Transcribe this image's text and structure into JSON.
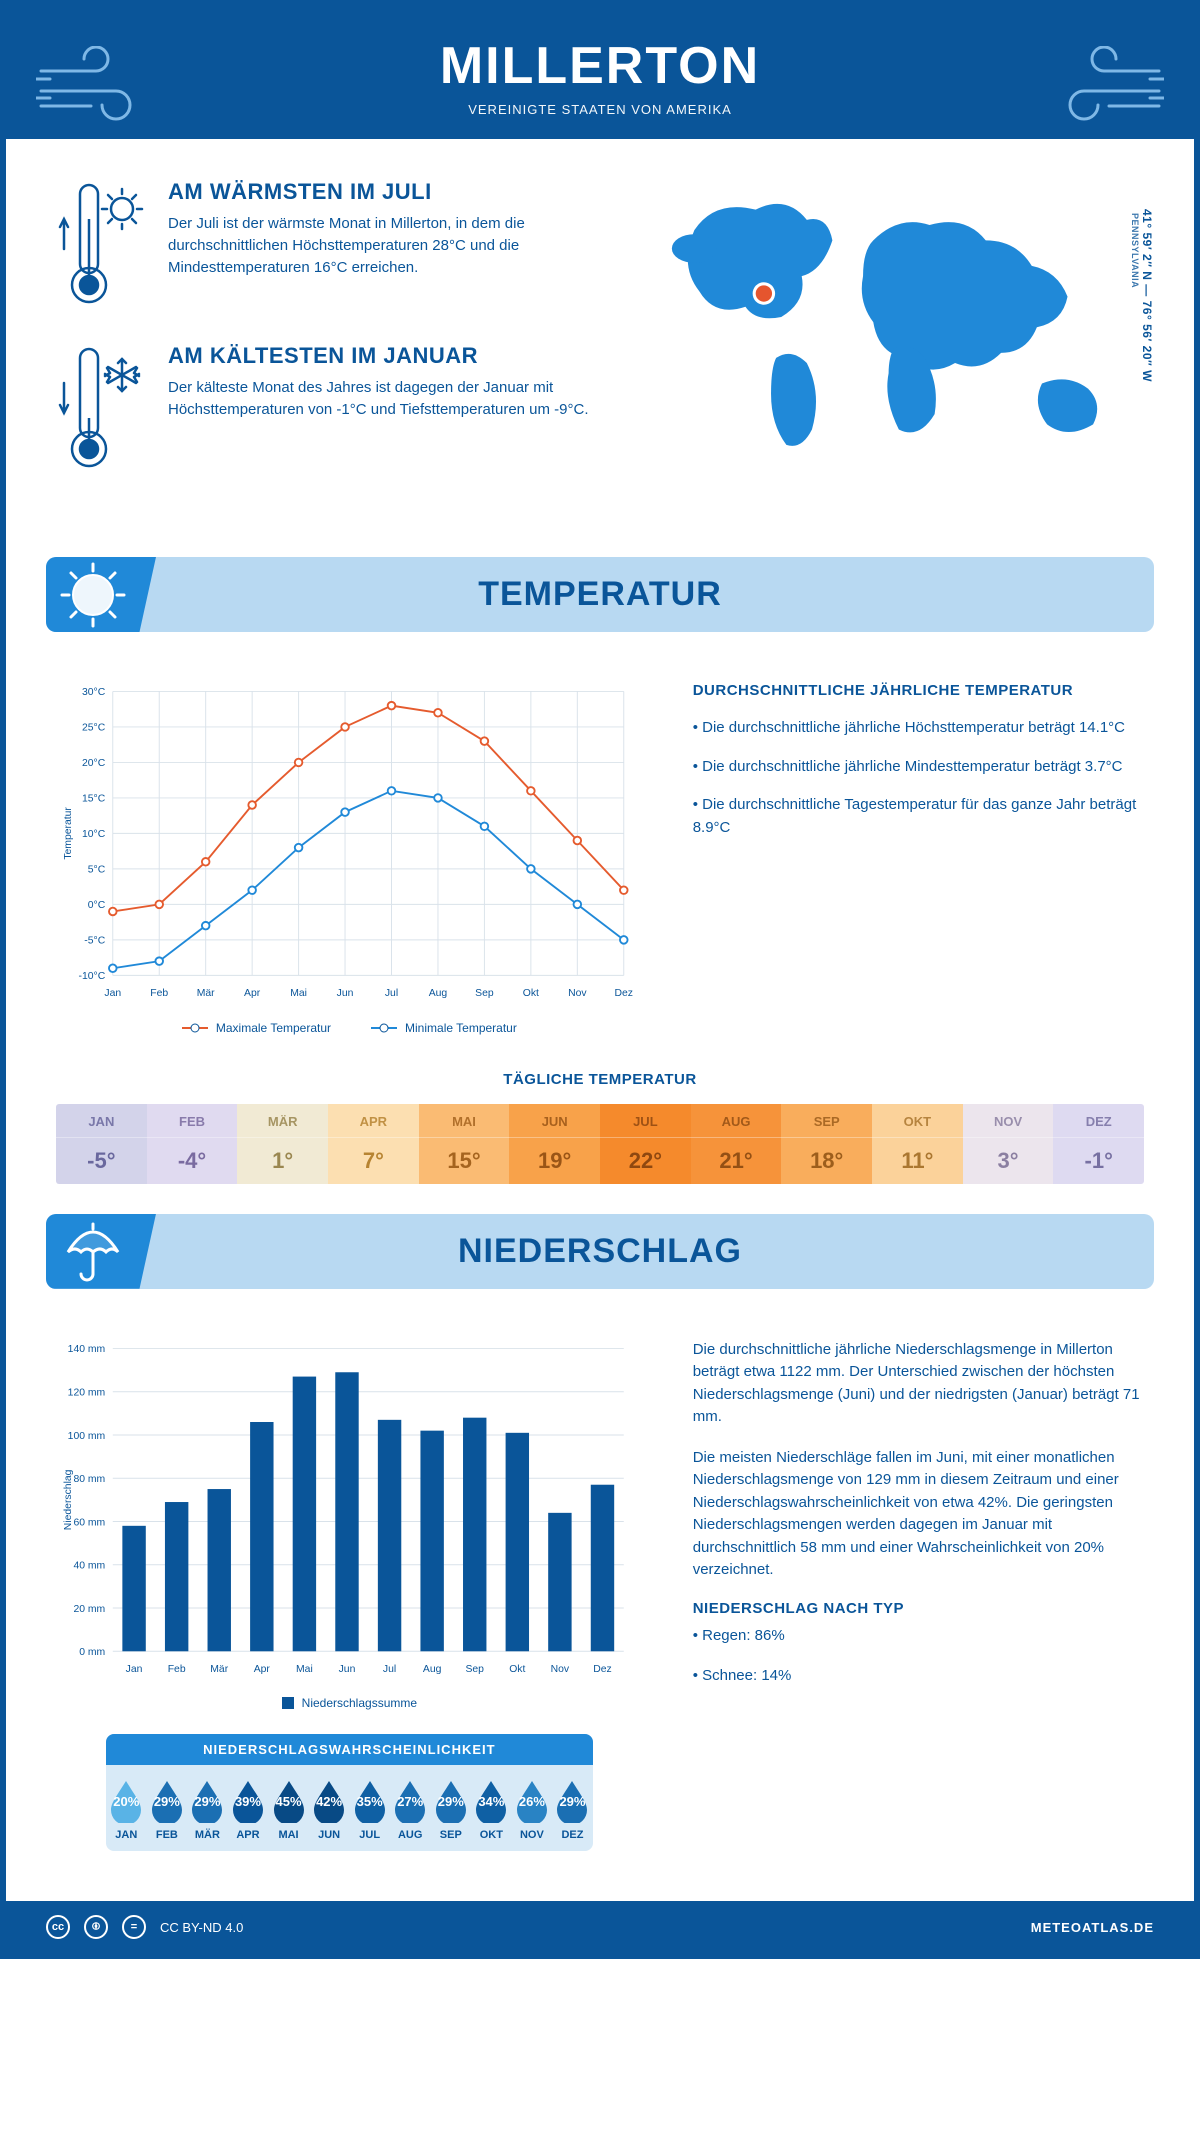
{
  "header": {
    "title": "MILLERTON",
    "subtitle": "VEREINIGTE STAATEN VON AMERIKA"
  },
  "coords": {
    "text": "41° 59′ 2″ N — 76° 56′ 20″ W",
    "region": "PENNSYLVANIA"
  },
  "facts": {
    "warm": {
      "title": "AM WÄRMSTEN IM JULI",
      "text": "Der Juli ist der wärmste Monat in Millerton, in dem die durchschnittlichen Höchsttemperaturen 28°C und die Mindesttemperaturen 16°C erreichen."
    },
    "cold": {
      "title": "AM KÄLTESTEN IM JANUAR",
      "text": "Der kälteste Monat des Jahres ist dagegen der Januar mit Höchsttemperaturen von -1°C und Tiefsttemperaturen um -9°C."
    }
  },
  "sections": {
    "temperature": "TEMPERATUR",
    "precipitation": "NIEDERSCHLAG"
  },
  "tempInfo": {
    "heading": "DURCHSCHNITTLICHE JÄHRLICHE TEMPERATUR",
    "bullets": [
      "• Die durchschnittliche jährliche Höchsttemperatur beträgt 14.1°C",
      "• Die durchschnittliche jährliche Mindesttemperatur beträgt 3.7°C",
      "• Die durchschnittliche Tagestemperatur für das ganze Jahr beträgt 8.9°C"
    ]
  },
  "tempChart": {
    "type": "line",
    "months": [
      "Jan",
      "Feb",
      "Mär",
      "Apr",
      "Mai",
      "Jun",
      "Jul",
      "Aug",
      "Sep",
      "Okt",
      "Nov",
      "Dez"
    ],
    "max": {
      "label": "Maximale Temperatur",
      "color": "#e55b2e",
      "values": [
        -1,
        0,
        6,
        14,
        20,
        25,
        28,
        27,
        23,
        16,
        9,
        2
      ]
    },
    "min": {
      "label": "Minimale Temperatur",
      "color": "#2089d8",
      "values": [
        -9,
        -8,
        -3,
        2,
        8,
        13,
        16,
        15,
        11,
        5,
        0,
        -5
      ]
    },
    "ylabel": "Temperatur",
    "ylim": [
      -10,
      30
    ],
    "ytick_step": 5,
    "grid_color": "#d9e2ea",
    "background": "#ffffff",
    "line_width": 2,
    "marker_size": 4
  },
  "dailyTemp": {
    "title": "TÄGLICHE TEMPERATUR",
    "months": [
      "JAN",
      "FEB",
      "MÄR",
      "APR",
      "MAI",
      "JUN",
      "JUL",
      "AUG",
      "SEP",
      "OKT",
      "NOV",
      "DEZ"
    ],
    "values": [
      "-5°",
      "-4°",
      "1°",
      "7°",
      "15°",
      "19°",
      "22°",
      "21°",
      "18°",
      "11°",
      "3°",
      "-1°"
    ],
    "bg_colors": [
      "#d3d3ea",
      "#e0daf0",
      "#f1ead4",
      "#fcdfb1",
      "#fabb73",
      "#f8a24a",
      "#f58a2c",
      "#f6933a",
      "#f9ad5c",
      "#fbd29a",
      "#ece5ed",
      "#dedaf1"
    ],
    "text_colors": [
      "#6a689e",
      "#7a6ba0",
      "#9a8750",
      "#b78432",
      "#a5641f",
      "#9a5516",
      "#8f4810",
      "#945014",
      "#9d5e1c",
      "#ab7730",
      "#8b7fa1",
      "#7770a2"
    ]
  },
  "precipChart": {
    "type": "bar",
    "months": [
      "Jan",
      "Feb",
      "Mär",
      "Apr",
      "Mai",
      "Jun",
      "Jul",
      "Aug",
      "Sep",
      "Okt",
      "Nov",
      "Dez"
    ],
    "values": [
      58,
      69,
      75,
      106,
      127,
      129,
      107,
      102,
      108,
      101,
      64,
      77
    ],
    "bar_color": "#0a5599",
    "ylabel": "Niederschlag",
    "ylim": [
      0,
      140
    ],
    "ytick_step": 20,
    "grid_color": "#d9e2ea",
    "legend": "Niederschlagssumme",
    "bar_width": 0.55
  },
  "precipInfo": {
    "p1": "Die durchschnittliche jährliche Niederschlagsmenge in Millerton beträgt etwa 1122 mm. Der Unterschied zwischen der höchsten Niederschlagsmenge (Juni) und der niedrigsten (Januar) beträgt 71 mm.",
    "p2": "Die meisten Niederschläge fallen im Juni, mit einer monatlichen Niederschlagsmenge von 129 mm in diesem Zeitraum und einer Niederschlagswahrscheinlichkeit von etwa 42%. Die geringsten Niederschlagsmengen werden dagegen im Januar mit durchschnittlich 58 mm und einer Wahrscheinlichkeit von 20% verzeichnet.",
    "typeHeading": "NIEDERSCHLAG NACH TYP",
    "typeRain": "• Regen: 86%",
    "typeSnow": "• Schnee: 14%"
  },
  "probability": {
    "title": "NIEDERSCHLAGSWAHRSCHEINLICHKEIT",
    "months": [
      "JAN",
      "FEB",
      "MÄR",
      "APR",
      "MAI",
      "JUN",
      "JUL",
      "AUG",
      "SEP",
      "OKT",
      "NOV",
      "DEZ"
    ],
    "values": [
      "20%",
      "29%",
      "29%",
      "39%",
      "45%",
      "42%",
      "35%",
      "27%",
      "29%",
      "34%",
      "26%",
      "29%"
    ],
    "drop_colors": [
      "#59b3e6",
      "#1b6fb3",
      "#1b6fb3",
      "#0a5599",
      "#084a85",
      "#084a85",
      "#0f60a4",
      "#1b6fb3",
      "#1b6fb3",
      "#0f60a4",
      "#2983c4",
      "#1b6fb3"
    ]
  },
  "footer": {
    "license": "CC BY-ND 4.0",
    "brand": "METEOATLAS.DE"
  }
}
